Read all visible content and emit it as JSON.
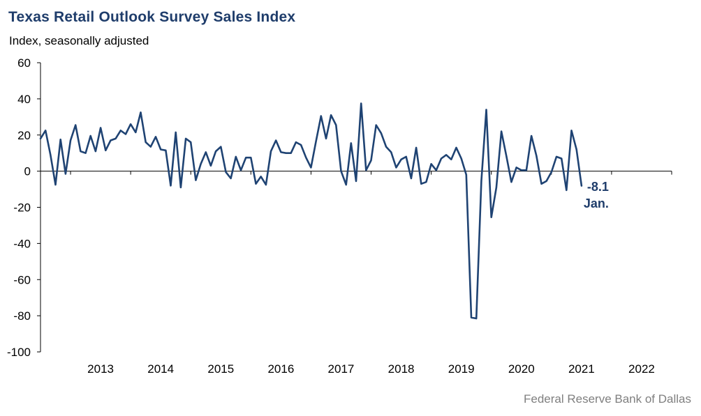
{
  "colors": {
    "line": "#1f4373",
    "title": "#1f3d6b",
    "axis": "#000000",
    "source": "#7f7f7f"
  },
  "source": "Federal Reserve Bank of Dallas",
  "chart_data": {
    "type": "line",
    "title": "Texas Retail Outlook Survey Sales Index",
    "subtitle": "Index, seasonally adjusted",
    "xlabel": "",
    "ylabel": "",
    "ylim": [
      -100,
      60
    ],
    "yticks": [
      "60",
      "40",
      "20",
      "0",
      "-20",
      "-40",
      "-60",
      "-80",
      "-100"
    ],
    "xticks": [
      "2013",
      "2014",
      "2015",
      "2016",
      "2017",
      "2018",
      "2019",
      "2020",
      "2021",
      "2022"
    ],
    "grid": false,
    "legend": "none",
    "start": "2012-07",
    "end": "2022-01",
    "annotation": {
      "value": "-8.1",
      "label": "Jan."
    },
    "series": [
      {
        "values": [
          18.0,
          22.5,
          9.0,
          -7.5,
          17.5,
          -1.5,
          17.0,
          25.5,
          11.0,
          10.0,
          19.5,
          11.0,
          24.0,
          11.5,
          17.0,
          18.0,
          22.5,
          20.5,
          26.0,
          21.5,
          32.5,
          16.0,
          13.5,
          19.0,
          12.0,
          11.5,
          -8.0,
          21.5,
          -9.0,
          18.0,
          16.0,
          -5.0,
          4.0,
          10.5,
          3.0,
          11.0,
          13.5,
          -0.5,
          -4.0,
          8.0,
          0.5,
          7.5,
          7.5,
          -7.0,
          -3.0,
          -7.5,
          11.0,
          17.0,
          10.5,
          10.0,
          10.0,
          16.0,
          14.5,
          7.5,
          2.0,
          16.5,
          30.5,
          18.0,
          31.0,
          25.5,
          0.0,
          -7.5,
          15.5,
          -5.5,
          37.5,
          0.5,
          6.0,
          25.5,
          21.0,
          13.5,
          10.5,
          2.0,
          6.5,
          8.0,
          -4.0,
          13.0,
          -7.0,
          -6.0,
          4.0,
          0.5,
          7.0,
          9.0,
          6.5,
          13.0,
          7.0,
          -2.0,
          -81.0,
          -81.5,
          -5.5,
          34.0,
          -25.5,
          -9.0,
          22.0,
          8.5,
          -6.0,
          2.0,
          0.5,
          0.5,
          19.5,
          8.5,
          -7.0,
          -5.5,
          -0.5,
          8.0,
          7.0,
          -10.5,
          22.5,
          12.0,
          -8.1
        ]
      }
    ]
  }
}
